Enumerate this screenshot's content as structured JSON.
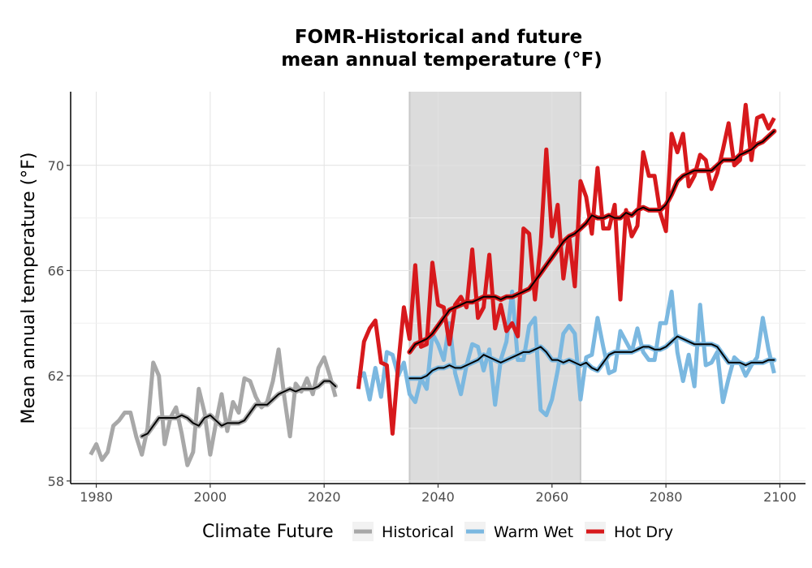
{
  "chart_data": {
    "type": "line",
    "title": "FOMR-Historical and future",
    "subtitle": "mean annual temperature (°F)",
    "xlabel": "",
    "ylabel": "Mean annual temperature (°F)",
    "xlim": [
      1975.5,
      2104.5
    ],
    "ylim": [
      57.9,
      72.8
    ],
    "xticks": [
      1980,
      2000,
      2020,
      2040,
      2060,
      2080,
      2100
    ],
    "yticks": [
      58,
      62,
      66,
      70
    ],
    "xtick_labels": [
      "1980",
      "2000",
      "2020",
      "2040",
      "2060",
      "2080",
      "2100"
    ],
    "ytick_labels": [
      "58",
      "62",
      "66",
      "70"
    ],
    "grid": true,
    "reference_period": [
      2035,
      2065
    ],
    "legend": {
      "title": "Climate Future",
      "position": "bottom",
      "entries": [
        {
          "label": "Historical",
          "color": "#a8a8a8"
        },
        {
          "label": "Warm Wet",
          "color": "#7bb8e0"
        },
        {
          "label": "Hot Dry",
          "color": "#d7191c"
        }
      ]
    },
    "series": [
      {
        "name": "Historical",
        "color": "#a8a8a8",
        "x": [
          1979,
          1980,
          1981,
          1982,
          1983,
          1984,
          1985,
          1986,
          1987,
          1988,
          1989,
          1990,
          1991,
          1992,
          1993,
          1994,
          1995,
          1996,
          1997,
          1998,
          1999,
          2000,
          2001,
          2002,
          2003,
          2004,
          2005,
          2006,
          2007,
          2008,
          2009,
          2010,
          2011,
          2012,
          2013,
          2014,
          2015,
          2016,
          2017,
          2018,
          2019,
          2020,
          2021,
          2022
        ],
        "y": [
          59.0,
          59.4,
          58.8,
          59.1,
          60.1,
          60.3,
          60.6,
          60.6,
          59.7,
          59.0,
          60.0,
          62.5,
          62.0,
          59.4,
          60.4,
          60.8,
          59.8,
          58.6,
          59.1,
          61.5,
          60.6,
          59.0,
          60.2,
          61.3,
          59.9,
          61.0,
          60.6,
          61.9,
          61.8,
          61.2,
          60.8,
          61.0,
          61.8,
          63.0,
          61.2,
          59.7,
          61.7,
          61.4,
          61.9,
          61.3,
          62.3,
          62.7,
          62.0,
          61.2
        ]
      },
      {
        "name": "Historical rolling mean",
        "color": "#000000",
        "x": [
          1988,
          1989,
          1990,
          1991,
          1992,
          1993,
          1994,
          1995,
          1996,
          1997,
          1998,
          1999,
          2000,
          2001,
          2002,
          2003,
          2004,
          2005,
          2006,
          2007,
          2008,
          2009,
          2010,
          2011,
          2012,
          2013,
          2014,
          2015,
          2016,
          2017,
          2018,
          2019,
          2020,
          2021,
          2022
        ],
        "y": [
          59.7,
          59.8,
          60.1,
          60.4,
          60.4,
          60.4,
          60.4,
          60.5,
          60.4,
          60.2,
          60.1,
          60.4,
          60.5,
          60.3,
          60.1,
          60.2,
          60.2,
          60.2,
          60.3,
          60.6,
          60.9,
          60.9,
          60.9,
          61.1,
          61.3,
          61.4,
          61.5,
          61.4,
          61.5,
          61.5,
          61.5,
          61.6,
          61.8,
          61.8,
          61.6
        ]
      },
      {
        "name": "Warm Wet",
        "color": "#7bb8e0",
        "x": [
          2026,
          2027,
          2028,
          2029,
          2030,
          2031,
          2032,
          2033,
          2034,
          2035,
          2036,
          2037,
          2038,
          2039,
          2040,
          2041,
          2042,
          2043,
          2044,
          2045,
          2046,
          2047,
          2048,
          2049,
          2050,
          2051,
          2052,
          2053,
          2054,
          2055,
          2056,
          2057,
          2058,
          2059,
          2060,
          2061,
          2062,
          2063,
          2064,
          2065,
          2066,
          2067,
          2068,
          2069,
          2070,
          2071,
          2072,
          2073,
          2074,
          2075,
          2076,
          2077,
          2078,
          2079,
          2080,
          2081,
          2082,
          2083,
          2084,
          2085,
          2086,
          2087,
          2088,
          2089,
          2090,
          2091,
          2092,
          2093,
          2094,
          2095,
          2096,
          2097,
          2098,
          2099
        ],
        "y": [
          61.9,
          62.1,
          61.1,
          62.3,
          61.2,
          62.9,
          62.8,
          62.0,
          62.5,
          61.3,
          61.0,
          61.9,
          61.5,
          63.6,
          63.2,
          62.6,
          64.0,
          62.1,
          61.3,
          62.4,
          63.2,
          63.1,
          62.2,
          63.0,
          60.9,
          62.6,
          63.3,
          65.2,
          62.6,
          62.6,
          63.9,
          64.2,
          60.7,
          60.5,
          61.1,
          62.2,
          63.6,
          63.9,
          63.6,
          61.1,
          62.7,
          62.8,
          64.2,
          63.1,
          62.1,
          62.2,
          63.7,
          63.3,
          62.9,
          63.8,
          62.9,
          62.6,
          62.6,
          64.0,
          64.0,
          65.2,
          62.9,
          61.8,
          62.8,
          61.6,
          64.7,
          62.4,
          62.5,
          62.9,
          61.0,
          61.9,
          62.7,
          62.5,
          62.0,
          62.4,
          62.7,
          64.2,
          63.0,
          62.1
        ]
      },
      {
        "name": "Warm Wet rolling mean",
        "color": "#000000",
        "x": [
          2035,
          2036,
          2037,
          2038,
          2039,
          2040,
          2041,
          2042,
          2043,
          2044,
          2045,
          2046,
          2047,
          2048,
          2049,
          2050,
          2051,
          2052,
          2053,
          2054,
          2055,
          2056,
          2057,
          2058,
          2059,
          2060,
          2061,
          2062,
          2063,
          2064,
          2065,
          2066,
          2067,
          2068,
          2069,
          2070,
          2071,
          2072,
          2073,
          2074,
          2075,
          2076,
          2077,
          2078,
          2079,
          2080,
          2081,
          2082,
          2083,
          2084,
          2085,
          2086,
          2087,
          2088,
          2089,
          2090,
          2091,
          2092,
          2093,
          2094,
          2095,
          2096,
          2097,
          2098,
          2099
        ],
        "y": [
          61.9,
          61.9,
          61.9,
          62.0,
          62.2,
          62.3,
          62.3,
          62.4,
          62.3,
          62.3,
          62.4,
          62.5,
          62.6,
          62.8,
          62.7,
          62.6,
          62.5,
          62.6,
          62.7,
          62.8,
          62.9,
          62.9,
          63.0,
          63.1,
          62.9,
          62.6,
          62.6,
          62.5,
          62.6,
          62.5,
          62.4,
          62.5,
          62.3,
          62.2,
          62.5,
          62.8,
          62.9,
          62.9,
          62.9,
          62.9,
          63.0,
          63.1,
          63.1,
          63.0,
          63.0,
          63.1,
          63.3,
          63.5,
          63.4,
          63.3,
          63.2,
          63.2,
          63.2,
          63.2,
          63.1,
          62.8,
          62.5,
          62.5,
          62.5,
          62.4,
          62.5,
          62.5,
          62.5,
          62.6,
          62.6
        ]
      },
      {
        "name": "Hot Dry",
        "color": "#d7191c",
        "x": [
          2026,
          2027,
          2028,
          2029,
          2030,
          2031,
          2032,
          2033,
          2034,
          2035,
          2036,
          2037,
          2038,
          2039,
          2040,
          2041,
          2042,
          2043,
          2044,
          2045,
          2046,
          2047,
          2048,
          2049,
          2050,
          2051,
          2052,
          2053,
          2054,
          2055,
          2056,
          2057,
          2058,
          2059,
          2060,
          2061,
          2062,
          2063,
          2064,
          2065,
          2066,
          2067,
          2068,
          2069,
          2070,
          2071,
          2072,
          2073,
          2074,
          2075,
          2076,
          2077,
          2078,
          2079,
          2080,
          2081,
          2082,
          2083,
          2084,
          2085,
          2086,
          2087,
          2088,
          2089,
          2090,
          2091,
          2092,
          2093,
          2094,
          2095,
          2096,
          2097,
          2098,
          2099
        ],
        "y": [
          61.5,
          63.3,
          63.8,
          64.1,
          62.5,
          62.4,
          59.8,
          62.4,
          64.6,
          63.4,
          66.2,
          63.1,
          63.2,
          66.3,
          64.7,
          64.6,
          63.2,
          64.7,
          65.0,
          64.6,
          66.8,
          64.2,
          64.6,
          66.6,
          63.8,
          64.7,
          63.7,
          64.0,
          63.5,
          67.6,
          67.4,
          64.9,
          67.0,
          70.6,
          67.3,
          68.5,
          65.7,
          67.3,
          65.4,
          69.4,
          68.8,
          67.4,
          69.9,
          67.6,
          67.6,
          68.5,
          64.9,
          68.3,
          67.3,
          67.7,
          70.5,
          69.6,
          69.6,
          68.2,
          67.5,
          71.2,
          70.5,
          71.2,
          69.2,
          69.6,
          70.4,
          70.2,
          69.1,
          69.7,
          70.6,
          71.6,
          70.0,
          70.2,
          72.3,
          70.2,
          71.8,
          71.9,
          71.4,
          71.8
        ]
      },
      {
        "name": "Hot Dry rolling mean",
        "color": "#000000",
        "x": [
          2035,
          2036,
          2037,
          2038,
          2039,
          2040,
          2041,
          2042,
          2043,
          2044,
          2045,
          2046,
          2047,
          2048,
          2049,
          2050,
          2051,
          2052,
          2053,
          2054,
          2055,
          2056,
          2057,
          2058,
          2059,
          2060,
          2061,
          2062,
          2063,
          2064,
          2065,
          2066,
          2067,
          2068,
          2069,
          2070,
          2071,
          2072,
          2073,
          2074,
          2075,
          2076,
          2077,
          2078,
          2079,
          2080,
          2081,
          2082,
          2083,
          2084,
          2085,
          2086,
          2087,
          2088,
          2089,
          2090,
          2091,
          2092,
          2093,
          2094,
          2095,
          2096,
          2097,
          2098,
          2099
        ],
        "y": [
          62.9,
          63.2,
          63.3,
          63.4,
          63.6,
          63.9,
          64.2,
          64.5,
          64.6,
          64.7,
          64.8,
          64.8,
          64.9,
          65.0,
          65.0,
          65.0,
          64.9,
          65.0,
          65.0,
          65.1,
          65.2,
          65.3,
          65.6,
          65.9,
          66.2,
          66.5,
          66.8,
          67.1,
          67.3,
          67.4,
          67.6,
          67.8,
          68.1,
          68.0,
          68.0,
          68.1,
          68.0,
          68.0,
          68.2,
          68.1,
          68.3,
          68.4,
          68.3,
          68.3,
          68.3,
          68.5,
          68.9,
          69.4,
          69.6,
          69.7,
          69.8,
          69.8,
          69.8,
          69.8,
          70.0,
          70.2,
          70.2,
          70.2,
          70.4,
          70.5,
          70.6,
          70.8,
          70.9,
          71.1,
          71.3
        ]
      }
    ]
  }
}
